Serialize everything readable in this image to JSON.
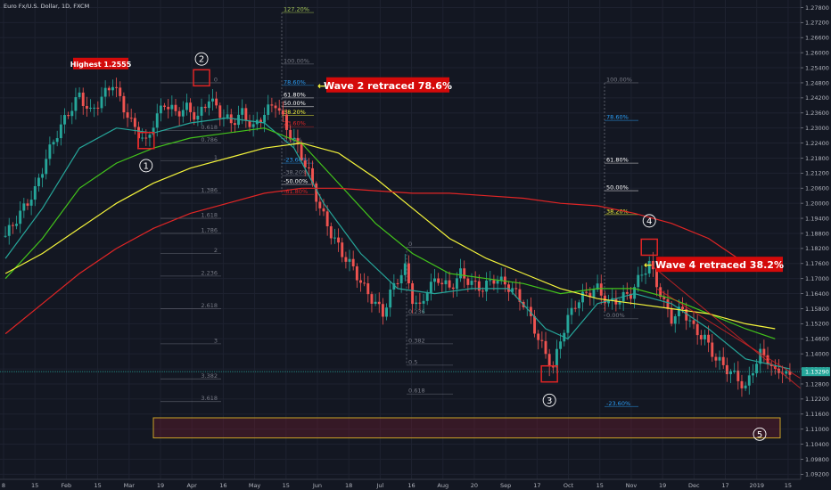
{
  "chart_data": {
    "type": "candlestick",
    "title": "Euro Fx/U.S. Dollar, 1D, FXCM",
    "y_ticks": [
      "1.27800",
      "1.27200",
      "1.26600",
      "1.26000",
      "1.25400",
      "1.24800",
      "1.24200",
      "1.23600",
      "1.23000",
      "1.22400",
      "1.21800",
      "1.21200",
      "1.20600",
      "1.20000",
      "1.19400",
      "1.18800",
      "1.18200",
      "1.17600",
      "1.17000",
      "1.16400",
      "1.15800",
      "1.15200",
      "1.14600",
      "1.14000",
      "1.13400",
      "1.12800",
      "1.12200",
      "1.11600",
      "1.11000",
      "1.10400",
      "1.09800",
      "1.09200"
    ],
    "ylim": [
      1.09,
      1.281
    ],
    "last_price": "1.13290",
    "x_ticks": [
      "8",
      "15",
      "Feb",
      "15",
      "Mar",
      "19",
      "Apr",
      "16",
      "May",
      "15",
      "Jun",
      "18",
      "Jul",
      "16",
      "Aug",
      "20",
      "Sep",
      "17",
      "Oct",
      "15",
      "Nov",
      "19",
      "Dec",
      "17",
      "2019",
      "15"
    ],
    "close_path": [
      [
        0,
        1.187
      ],
      [
        4,
        1.196
      ],
      [
        8,
        1.205
      ],
      [
        11,
        1.218
      ],
      [
        14,
        1.228
      ],
      [
        17,
        1.236
      ],
      [
        20,
        1.243
      ],
      [
        23,
        1.236
      ],
      [
        26,
        1.242
      ],
      [
        29,
        1.248
      ],
      [
        32,
        1.238
      ],
      [
        34,
        1.232
      ],
      [
        36,
        1.228
      ],
      [
        38,
        1.224
      ],
      [
        40,
        1.232
      ],
      [
        43,
        1.24
      ],
      [
        46,
        1.236
      ],
      [
        49,
        1.238
      ],
      [
        52,
        1.234
      ],
      [
        55,
        1.242
      ],
      [
        58,
        1.236
      ],
      [
        61,
        1.232
      ],
      [
        64,
        1.236
      ],
      [
        67,
        1.23
      ],
      [
        70,
        1.236
      ],
      [
        73,
        1.24
      ],
      [
        76,
        1.23
      ],
      [
        79,
        1.222
      ],
      [
        82,
        1.212
      ],
      [
        85,
        1.198
      ],
      [
        88,
        1.188
      ],
      [
        91,
        1.18
      ],
      [
        94,
        1.174
      ],
      [
        97,
        1.166
      ],
      [
        100,
        1.16
      ],
      [
        102,
        1.156
      ],
      [
        104,
        1.164
      ],
      [
        106,
        1.17
      ],
      [
        108,
        1.174
      ],
      [
        110,
        1.162
      ],
      [
        112,
        1.158
      ],
      [
        114,
        1.166
      ],
      [
        117,
        1.17
      ],
      [
        120,
        1.166
      ],
      [
        123,
        1.172
      ],
      [
        126,
        1.168
      ],
      [
        129,
        1.166
      ],
      [
        132,
        1.17
      ],
      [
        135,
        1.168
      ],
      [
        138,
        1.164
      ],
      [
        140,
        1.16
      ],
      [
        142,
        1.154
      ],
      [
        144,
        1.146
      ],
      [
        146,
        1.14
      ],
      [
        148,
        1.134
      ],
      [
        150,
        1.146
      ],
      [
        152,
        1.154
      ],
      [
        154,
        1.16
      ],
      [
        157,
        1.164
      ],
      [
        160,
        1.166
      ],
      [
        163,
        1.16
      ],
      [
        166,
        1.162
      ],
      [
        169,
        1.164
      ],
      [
        172,
        1.172
      ],
      [
        174,
        1.176
      ],
      [
        176,
        1.168
      ],
      [
        178,
        1.16
      ],
      [
        180,
        1.154
      ],
      [
        183,
        1.158
      ],
      [
        186,
        1.15
      ],
      [
        189,
        1.146
      ],
      [
        192,
        1.138
      ],
      [
        195,
        1.134
      ],
      [
        198,
        1.13
      ],
      [
        200,
        1.126
      ],
      [
        202,
        1.134
      ],
      [
        204,
        1.14
      ],
      [
        206,
        1.138
      ],
      [
        208,
        1.132
      ],
      [
        210,
        1.134
      ],
      [
        212,
        1.13
      ]
    ],
    "ohlc_band": 0.006,
    "series": [
      {
        "name": "",
        "color": "#26a69a",
        "values": [
          [
            0,
            1.178
          ],
          [
            10,
            1.198
          ],
          [
            20,
            1.222
          ],
          [
            30,
            1.23
          ],
          [
            40,
            1.228
          ],
          [
            50,
            1.232
          ],
          [
            60,
            1.234
          ],
          [
            70,
            1.232
          ],
          [
            78,
            1.222
          ],
          [
            86,
            1.2
          ],
          [
            96,
            1.18
          ],
          [
            106,
            1.166
          ],
          [
            116,
            1.164
          ],
          [
            126,
            1.166
          ],
          [
            136,
            1.166
          ],
          [
            146,
            1.15
          ],
          [
            152,
            1.146
          ],
          [
            160,
            1.16
          ],
          [
            170,
            1.164
          ],
          [
            180,
            1.16
          ],
          [
            190,
            1.15
          ],
          [
            200,
            1.138
          ],
          [
            206,
            1.136
          ],
          [
            212,
            1.134
          ]
        ]
      },
      {
        "name": "",
        "color": "#43c41b",
        "values": [
          [
            0,
            1.17
          ],
          [
            10,
            1.186
          ],
          [
            20,
            1.206
          ],
          [
            30,
            1.216
          ],
          [
            40,
            1.222
          ],
          [
            50,
            1.226
          ],
          [
            60,
            1.228
          ],
          [
            70,
            1.23
          ],
          [
            80,
            1.224
          ],
          [
            90,
            1.208
          ],
          [
            100,
            1.192
          ],
          [
            110,
            1.18
          ],
          [
            120,
            1.172
          ],
          [
            130,
            1.17
          ],
          [
            140,
            1.168
          ],
          [
            150,
            1.164
          ],
          [
            160,
            1.166
          ],
          [
            170,
            1.166
          ],
          [
            180,
            1.162
          ],
          [
            190,
            1.156
          ],
          [
            200,
            1.15
          ],
          [
            208,
            1.146
          ]
        ]
      },
      {
        "name": "",
        "color": "#f5f53b",
        "values": [
          [
            0,
            1.172
          ],
          [
            10,
            1.18
          ],
          [
            20,
            1.19
          ],
          [
            30,
            1.2
          ],
          [
            40,
            1.208
          ],
          [
            50,
            1.214
          ],
          [
            60,
            1.218
          ],
          [
            70,
            1.222
          ],
          [
            80,
            1.224
          ],
          [
            90,
            1.22
          ],
          [
            100,
            1.21
          ],
          [
            110,
            1.198
          ],
          [
            120,
            1.186
          ],
          [
            130,
            1.178
          ],
          [
            140,
            1.172
          ],
          [
            150,
            1.166
          ],
          [
            160,
            1.162
          ],
          [
            170,
            1.16
          ],
          [
            180,
            1.158
          ],
          [
            190,
            1.156
          ],
          [
            200,
            1.152
          ],
          [
            208,
            1.15
          ]
        ]
      },
      {
        "name": "",
        "color": "#e02525",
        "values": [
          [
            0,
            1.148
          ],
          [
            10,
            1.16
          ],
          [
            20,
            1.172
          ],
          [
            30,
            1.182
          ],
          [
            40,
            1.19
          ],
          [
            50,
            1.196
          ],
          [
            60,
            1.2
          ],
          [
            70,
            1.204
          ],
          [
            80,
            1.206
          ],
          [
            90,
            1.206
          ],
          [
            100,
            1.205
          ],
          [
            110,
            1.204
          ],
          [
            120,
            1.204
          ],
          [
            130,
            1.203
          ],
          [
            140,
            1.202
          ],
          [
            150,
            1.2
          ],
          [
            160,
            1.199
          ],
          [
            170,
            1.196
          ],
          [
            180,
            1.192
          ],
          [
            190,
            1.186
          ],
          [
            196,
            1.18
          ],
          [
            202,
            1.174
          ]
        ]
      }
    ],
    "fib_sets": [
      {
        "levels": [
          {
            "label": "127.20%",
            "y": 1.276,
            "color": "#a7c957"
          },
          {
            "label": "100.00%",
            "y": 1.2555,
            "color": "#787b86"
          },
          {
            "label": "78.60%",
            "y": 1.247,
            "color": "#2a9df4"
          },
          {
            "label": "61.80%",
            "y": 1.242,
            "color": "#ffffff"
          },
          {
            "label": "50.00%",
            "y": 1.2385,
            "color": "#ffffff"
          },
          {
            "label": "38.20%",
            "y": 1.235,
            "color": "#f5f53b"
          },
          {
            "label": "23.60%",
            "y": 1.2305,
            "color": "#e02525"
          },
          {
            "label": "0.00%",
            "y": 1.224,
            "color": "#787b86"
          },
          {
            "label": "-23.60%",
            "y": 1.216,
            "color": "#2a9df4"
          },
          {
            "label": "-38.20%",
            "y": 1.211,
            "color": "#787b86"
          },
          {
            "label": "-50.00%",
            "y": 1.2075,
            "color": "#ffffff"
          },
          {
            "label": "-61.80%",
            "y": 1.2035,
            "color": "#e02525"
          }
        ]
      },
      {
        "levels": [
          {
            "label": "0",
            "y": 1.248,
            "color": "#787b86"
          },
          {
            "label": "0.618",
            "y": 1.229,
            "color": "#787b86"
          },
          {
            "label": "0.786",
            "y": 1.224,
            "color": "#787b86"
          },
          {
            "label": "1",
            "y": 1.217,
            "color": "#787b86"
          },
          {
            "label": "1.386",
            "y": 1.204,
            "color": "#787b86"
          },
          {
            "label": "1.618",
            "y": 1.194,
            "color": "#787b86"
          },
          {
            "label": "1.786",
            "y": 1.188,
            "color": "#787b86"
          },
          {
            "label": "2",
            "y": 1.18,
            "color": "#787b86"
          },
          {
            "label": "2.236",
            "y": 1.171,
            "color": "#787b86"
          },
          {
            "label": "2.618",
            "y": 1.158,
            "color": "#787b86"
          },
          {
            "label": "3",
            "y": 1.144,
            "color": "#787b86"
          },
          {
            "label": "3.382",
            "y": 1.13,
            "color": "#787b86"
          },
          {
            "label": "3.618",
            "y": 1.121,
            "color": "#787b86"
          }
        ]
      },
      {
        "levels": [
          {
            "label": "0",
            "y": 1.1825,
            "color": "#787b86"
          },
          {
            "label": "0.236",
            "y": 1.1555,
            "color": "#787b86"
          },
          {
            "label": "0.382",
            "y": 1.144,
            "color": "#787b86"
          },
          {
            "label": "0.5",
            "y": 1.1355,
            "color": "#787b86"
          },
          {
            "label": "0.618",
            "y": 1.124,
            "color": "#787b86"
          }
        ]
      },
      {
        "levels": [
          {
            "label": "100.00%",
            "y": 1.248,
            "color": "#787b86"
          },
          {
            "label": "78.60%",
            "y": 1.233,
            "color": "#2a9df4"
          },
          {
            "label": "61.80%",
            "y": 1.216,
            "color": "#ffffff"
          },
          {
            "label": "50.00%",
            "y": 1.205,
            "color": "#ffffff"
          },
          {
            "label": "38.20%",
            "y": 1.1955,
            "color": "#f5f53b"
          },
          {
            "label": "0.00%",
            "y": 1.154,
            "color": "#787b86"
          },
          {
            "label": "-23.60%",
            "y": 1.119,
            "color": "#2a9df4"
          }
        ]
      }
    ],
    "annotations": {
      "highest": "Highest 1.2555",
      "wave2": "Wave 2 retraced 78.6%",
      "wave4": "Wave 4 retraced 38.2%"
    },
    "wave_labels": [
      "1",
      "2",
      "3",
      "4",
      "5"
    ]
  }
}
